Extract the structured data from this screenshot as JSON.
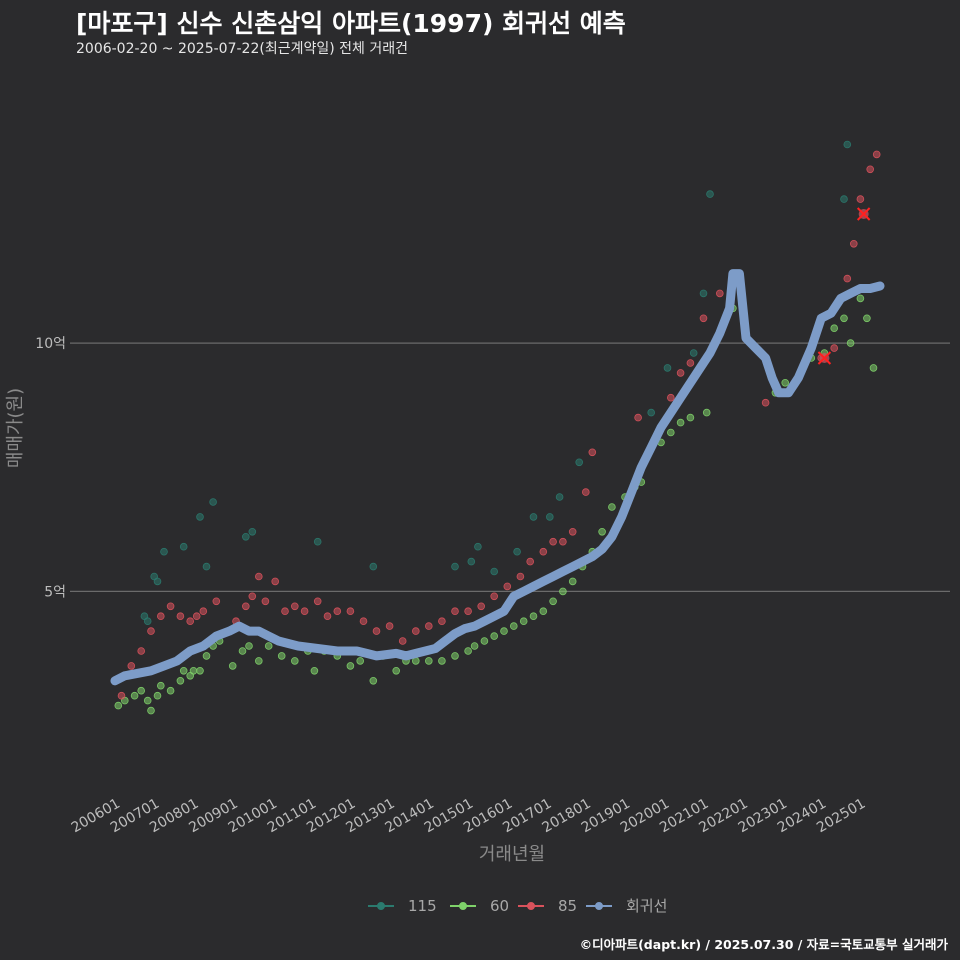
{
  "header": {
    "title": "[마포구] 신수 신촌삼익 아파트(1997) 회귀선 예측",
    "subtitle": "2006-02-20 ~ 2025-07-22(최근계약일) 전체 거래건"
  },
  "footer": {
    "text": "©디아파트(dapt.kr) / 2025.07.30 / 자료=국토교통부 실거래가"
  },
  "colors": {
    "background": "#2b2b2d",
    "grid": "#6b6b6b",
    "s115": "#2b7a6e",
    "s60": "#7fd26a",
    "s85": "#d9525c",
    "regression": "#7d9cc8",
    "outlier": "#ff2020"
  },
  "chart_data": {
    "type": "scatter",
    "title": "[마포구] 신수 신촌삼익 아파트(1997) 회귀선 예측",
    "xlabel": "거래년월",
    "ylabel": "매매가(원)",
    "xlim": [
      "2006-01",
      "2025-07"
    ],
    "ylim": [
      1.0,
      15.5
    ],
    "grid": true,
    "legend_position": "bottom",
    "x_ticks": [
      "200601",
      "200701",
      "200801",
      "200901",
      "201001",
      "201101",
      "201201",
      "201301",
      "201401",
      "201501",
      "201601",
      "201701",
      "201801",
      "201901",
      "202001",
      "202101",
      "202201",
      "202301",
      "202401",
      "202501"
    ],
    "y_ticks": [
      {
        "value": 5,
        "label": "5억"
      },
      {
        "value": 10,
        "label": "10억"
      }
    ],
    "series": [
      {
        "name": "115",
        "points": [
          [
            "2006-10",
            4.5
          ],
          [
            "2006-11",
            4.4
          ],
          [
            "2007-01",
            5.3
          ],
          [
            "2007-02",
            5.2
          ],
          [
            "2007-04",
            5.8
          ],
          [
            "2007-10",
            5.9
          ],
          [
            "2008-03",
            6.5
          ],
          [
            "2008-05",
            5.5
          ],
          [
            "2008-07",
            6.8
          ],
          [
            "2009-05",
            6.1
          ],
          [
            "2009-07",
            6.2
          ],
          [
            "2011-03",
            6.0
          ],
          [
            "2012-08",
            5.5
          ],
          [
            "2014-09",
            5.5
          ],
          [
            "2015-02",
            5.6
          ],
          [
            "2015-04",
            5.9
          ],
          [
            "2015-09",
            5.4
          ],
          [
            "2016-04",
            5.8
          ],
          [
            "2016-09",
            6.5
          ],
          [
            "2017-02",
            6.5
          ],
          [
            "2017-05",
            6.9
          ],
          [
            "2017-11",
            7.6
          ],
          [
            "2019-09",
            8.6
          ],
          [
            "2020-02",
            9.5
          ],
          [
            "2020-10",
            9.8
          ],
          [
            "2021-01",
            11.0
          ],
          [
            "2021-03",
            13.0
          ],
          [
            "2024-09",
            14.0
          ],
          [
            "2024-08",
            12.9
          ]
        ]
      },
      {
        "name": "60",
        "points": [
          [
            "2006-02",
            2.7
          ],
          [
            "2006-04",
            2.8
          ],
          [
            "2006-07",
            2.9
          ],
          [
            "2006-09",
            3.0
          ],
          [
            "2006-11",
            2.8
          ],
          [
            "2006-12",
            2.6
          ],
          [
            "2007-02",
            2.9
          ],
          [
            "2007-03",
            3.1
          ],
          [
            "2007-06",
            3.0
          ],
          [
            "2007-09",
            3.2
          ],
          [
            "2007-10",
            3.4
          ],
          [
            "2007-12",
            3.3
          ],
          [
            "2008-01",
            3.4
          ],
          [
            "2008-03",
            3.4
          ],
          [
            "2008-05",
            3.7
          ],
          [
            "2008-07",
            3.9
          ],
          [
            "2008-09",
            4.0
          ],
          [
            "2009-01",
            3.5
          ],
          [
            "2009-04",
            3.8
          ],
          [
            "2009-06",
            3.9
          ],
          [
            "2009-09",
            3.6
          ],
          [
            "2009-12",
            3.9
          ],
          [
            "2010-04",
            3.7
          ],
          [
            "2010-08",
            3.6
          ],
          [
            "2010-12",
            3.8
          ],
          [
            "2011-02",
            3.4
          ],
          [
            "2011-05",
            3.8
          ],
          [
            "2011-09",
            3.7
          ],
          [
            "2012-01",
            3.5
          ],
          [
            "2012-04",
            3.6
          ],
          [
            "2012-08",
            3.2
          ],
          [
            "2012-11",
            3.7
          ],
          [
            "2013-03",
            3.4
          ],
          [
            "2013-06",
            3.6
          ],
          [
            "2013-09",
            3.6
          ],
          [
            "2014-01",
            3.6
          ],
          [
            "2014-05",
            3.6
          ],
          [
            "2014-09",
            3.7
          ],
          [
            "2015-01",
            3.8
          ],
          [
            "2015-03",
            3.9
          ],
          [
            "2015-06",
            4.0
          ],
          [
            "2015-09",
            4.1
          ],
          [
            "2015-12",
            4.2
          ],
          [
            "2016-03",
            4.3
          ],
          [
            "2016-06",
            4.4
          ],
          [
            "2016-09",
            4.5
          ],
          [
            "2016-12",
            4.6
          ],
          [
            "2017-03",
            4.8
          ],
          [
            "2017-06",
            5.0
          ],
          [
            "2017-09",
            5.2
          ],
          [
            "2017-12",
            5.5
          ],
          [
            "2018-03",
            5.8
          ],
          [
            "2018-06",
            6.2
          ],
          [
            "2018-09",
            6.7
          ],
          [
            "2019-01",
            6.9
          ],
          [
            "2019-04",
            7.1
          ],
          [
            "2019-06",
            7.2
          ],
          [
            "2019-09",
            7.9
          ],
          [
            "2019-12",
            8.0
          ],
          [
            "2020-03",
            8.2
          ],
          [
            "2020-06",
            8.4
          ],
          [
            "2020-09",
            8.5
          ],
          [
            "2021-02",
            8.6
          ],
          [
            "2021-10",
            10.7
          ],
          [
            "2022-11",
            9.0
          ],
          [
            "2023-02",
            9.2
          ],
          [
            "2023-06",
            9.3
          ],
          [
            "2023-10",
            9.7
          ],
          [
            "2024-02",
            9.8
          ],
          [
            "2024-05",
            10.3
          ],
          [
            "2024-08",
            10.5
          ],
          [
            "2024-10",
            10.0
          ],
          [
            "2025-01",
            10.9
          ],
          [
            "2025-03",
            10.5
          ],
          [
            "2025-05",
            9.5
          ]
        ]
      },
      {
        "name": "85",
        "points": [
          [
            "2006-03",
            2.9
          ],
          [
            "2006-06",
            3.5
          ],
          [
            "2006-09",
            3.8
          ],
          [
            "2006-12",
            4.2
          ],
          [
            "2007-03",
            4.5
          ],
          [
            "2007-06",
            4.7
          ],
          [
            "2007-09",
            4.5
          ],
          [
            "2007-12",
            4.4
          ],
          [
            "2008-02",
            4.5
          ],
          [
            "2008-04",
            4.6
          ],
          [
            "2008-08",
            4.8
          ],
          [
            "2009-02",
            4.4
          ],
          [
            "2009-05",
            4.7
          ],
          [
            "2009-07",
            4.9
          ],
          [
            "2009-09",
            5.3
          ],
          [
            "2009-11",
            4.8
          ],
          [
            "2010-02",
            5.2
          ],
          [
            "2010-05",
            4.6
          ],
          [
            "2010-08",
            4.7
          ],
          [
            "2010-11",
            4.6
          ],
          [
            "2011-03",
            4.8
          ],
          [
            "2011-06",
            4.5
          ],
          [
            "2011-09",
            4.6
          ],
          [
            "2012-01",
            4.6
          ],
          [
            "2012-05",
            4.4
          ],
          [
            "2012-09",
            4.2
          ],
          [
            "2013-01",
            4.3
          ],
          [
            "2013-05",
            4.0
          ],
          [
            "2013-09",
            4.2
          ],
          [
            "2014-01",
            4.3
          ],
          [
            "2014-05",
            4.4
          ],
          [
            "2014-09",
            4.6
          ],
          [
            "2015-01",
            4.6
          ],
          [
            "2015-05",
            4.7
          ],
          [
            "2015-09",
            4.9
          ],
          [
            "2016-01",
            5.1
          ],
          [
            "2016-05",
            5.3
          ],
          [
            "2016-08",
            5.6
          ],
          [
            "2016-12",
            5.8
          ],
          [
            "2017-03",
            6.0
          ],
          [
            "2017-06",
            6.0
          ],
          [
            "2017-09",
            6.2
          ],
          [
            "2018-01",
            7.0
          ],
          [
            "2018-03",
            7.8
          ],
          [
            "2019-05",
            8.5
          ],
          [
            "2020-03",
            8.9
          ],
          [
            "2020-06",
            9.4
          ],
          [
            "2020-09",
            9.6
          ],
          [
            "2021-01",
            10.5
          ],
          [
            "2021-06",
            11.0
          ],
          [
            "2022-08",
            8.8
          ],
          [
            "2024-01",
            9.7
          ],
          [
            "2024-05",
            9.9
          ],
          [
            "2024-09",
            11.3
          ],
          [
            "2024-11",
            12.0
          ],
          [
            "2025-01",
            12.9
          ],
          [
            "2025-04",
            13.5
          ],
          [
            "2025-06",
            13.8
          ]
        ]
      }
    ],
    "regression": {
      "name": "회귀선",
      "points": [
        [
          "2006-01",
          3.2
        ],
        [
          "2006-04",
          3.3
        ],
        [
          "2006-12",
          3.4
        ],
        [
          "2007-04",
          3.5
        ],
        [
          "2007-08",
          3.6
        ],
        [
          "2007-12",
          3.8
        ],
        [
          "2008-04",
          3.9
        ],
        [
          "2008-08",
          4.1
        ],
        [
          "2008-12",
          4.2
        ],
        [
          "2009-03",
          4.3
        ],
        [
          "2009-06",
          4.2
        ],
        [
          "2009-09",
          4.2
        ],
        [
          "2009-12",
          4.1
        ],
        [
          "2010-03",
          4.0
        ],
        [
          "2010-09",
          3.9
        ],
        [
          "2011-03",
          3.85
        ],
        [
          "2011-09",
          3.8
        ],
        [
          "2012-03",
          3.8
        ],
        [
          "2012-06",
          3.75
        ],
        [
          "2012-09",
          3.7
        ],
        [
          "2013-03",
          3.75
        ],
        [
          "2013-06",
          3.7
        ],
        [
          "2013-09",
          3.75
        ],
        [
          "2014-03",
          3.85
        ],
        [
          "2014-06",
          4.0
        ],
        [
          "2014-09",
          4.15
        ],
        [
          "2014-12",
          4.25
        ],
        [
          "2015-03",
          4.3
        ],
        [
          "2015-06",
          4.4
        ],
        [
          "2015-09",
          4.5
        ],
        [
          "2015-12",
          4.6
        ],
        [
          "2016-03",
          4.9
        ],
        [
          "2016-06",
          5.0
        ],
        [
          "2016-09",
          5.1
        ],
        [
          "2016-12",
          5.2
        ],
        [
          "2017-03",
          5.3
        ],
        [
          "2017-06",
          5.4
        ],
        [
          "2017-09",
          5.5
        ],
        [
          "2017-12",
          5.6
        ],
        [
          "2018-03",
          5.7
        ],
        [
          "2018-06",
          5.85
        ],
        [
          "2018-09",
          6.1
        ],
        [
          "2018-12",
          6.5
        ],
        [
          "2019-03",
          7.0
        ],
        [
          "2019-06",
          7.5
        ],
        [
          "2019-09",
          7.9
        ],
        [
          "2019-12",
          8.3
        ],
        [
          "2020-03",
          8.6
        ],
        [
          "2020-06",
          8.9
        ],
        [
          "2020-09",
          9.2
        ],
        [
          "2020-12",
          9.5
        ],
        [
          "2021-03",
          9.8
        ],
        [
          "2021-06",
          10.2
        ],
        [
          "2021-09",
          10.7
        ],
        [
          "2021-10",
          11.4
        ],
        [
          "2021-12",
          11.4
        ],
        [
          "2022-02",
          10.1
        ],
        [
          "2022-05",
          9.9
        ],
        [
          "2022-08",
          9.7
        ],
        [
          "2022-10",
          9.3
        ],
        [
          "2022-12",
          9.0
        ],
        [
          "2023-03",
          9.0
        ],
        [
          "2023-06",
          9.3
        ],
        [
          "2023-08",
          9.6
        ],
        [
          "2023-10",
          9.9
        ],
        [
          "2024-01",
          10.5
        ],
        [
          "2024-04",
          10.6
        ],
        [
          "2024-07",
          10.9
        ],
        [
          "2024-10",
          11.0
        ],
        [
          "2025-01",
          11.1
        ],
        [
          "2025-04",
          11.1
        ],
        [
          "2025-07",
          11.15
        ]
      ]
    },
    "outliers": [
      [
        "2024-02",
        9.7
      ],
      [
        "2025-02",
        12.6
      ]
    ]
  }
}
